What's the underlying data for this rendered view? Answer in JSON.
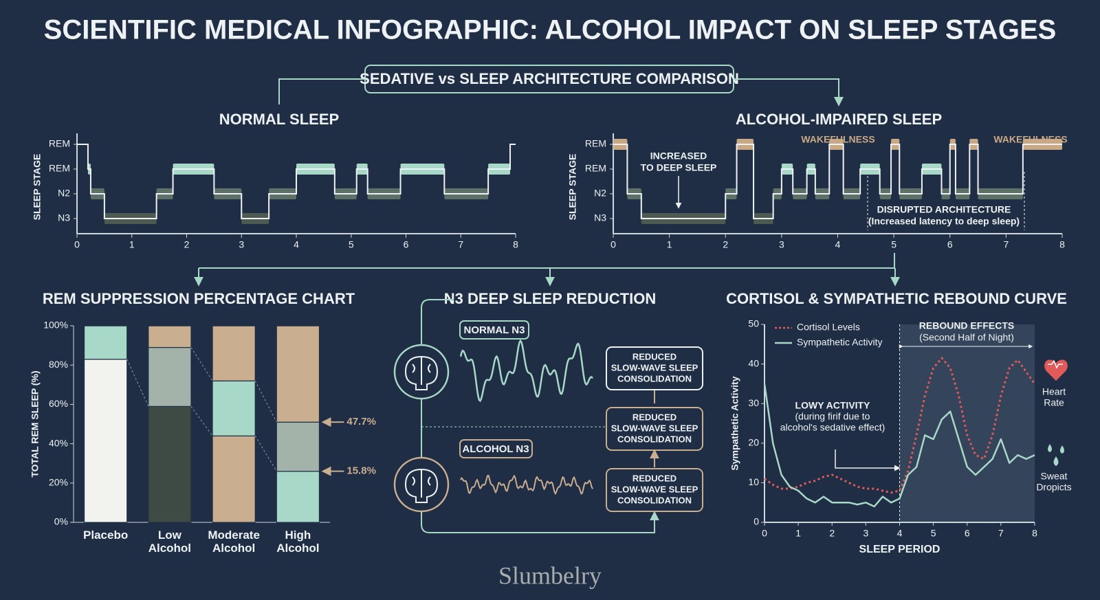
{
  "title": "SCIENTIFIC MEDICAL INFOGRAPHIC: ALCOHOL IMPACT ON SLEEP STAGES",
  "subtitle": "SEDATIVE vs SLEEP ARCHITECTURE COMPARISON",
  "chart_data": [
    {
      "type": "hypnogram",
      "title": "NORMAL SLEEP",
      "y_label": "SLEEP STAGE",
      "x": [
        0,
        0.2,
        0.25,
        0.5,
        1.45,
        1.75,
        2.5,
        3.0,
        3.5,
        4.0,
        4.7,
        5.1,
        5.3,
        5.9,
        6.7,
        7.5,
        7.9
      ],
      "values": [
        3,
        2,
        1,
        0,
        1,
        2,
        1,
        0,
        1,
        2,
        1,
        2,
        1,
        2,
        1,
        2,
        3
      ],
      "stage_colors": [
        "#4c5a51",
        "#5e7168",
        "#a8d8c8"
      ],
      "xlim": [
        0,
        8
      ],
      "xticks": [
        0,
        1,
        2,
        3,
        4,
        5,
        6,
        7,
        8
      ],
      "yticks": [
        {
          "value": 0,
          "label": "N3"
        },
        {
          "value": 1,
          "label": "N2"
        },
        {
          "value": 2,
          "label": "REM"
        },
        {
          "value": 3,
          "label": "REM"
        }
      ]
    },
    {
      "type": "hypnogram",
      "title": "ALCOHOL-IMPAIRED SLEEP",
      "y_label": "SLEEP STAGE",
      "x": [
        0,
        0.25,
        0.5,
        2.0,
        2.2,
        2.5,
        2.85,
        3.0,
        3.2,
        3.45,
        3.6,
        3.85,
        4.1,
        4.4,
        4.75,
        4.95,
        5.1,
        5.5,
        5.85,
        6.0,
        6.1,
        6.35,
        6.5,
        7.3
      ],
      "values": [
        3,
        1,
        0,
        1,
        3,
        0,
        1,
        2,
        1,
        2,
        1,
        3,
        1,
        2,
        1,
        3,
        1,
        2,
        1,
        3,
        1,
        3,
        1,
        3
      ],
      "stage_colors": [
        "#4c5a51",
        "#5e7168",
        "#a8d8c8",
        "#c9a985"
      ],
      "xlim": [
        0,
        8
      ],
      "xticks": [
        0,
        1,
        2,
        3,
        4,
        5,
        6,
        7,
        8
      ],
      "yticks": [
        {
          "value": 0,
          "label": "N3"
        },
        {
          "value": 1,
          "label": "N2"
        },
        {
          "value": 2,
          "label": "REM"
        },
        {
          "value": 3,
          "label": "REM"
        }
      ],
      "annotations": [
        "INCREASED",
        "TO DEEP SLEEP",
        "WAKEFULNESS",
        "WAKEFULNESS",
        "DISRUPTED ARCHITECTURE",
        "(Increased latency to deep sleep)"
      ]
    },
    {
      "type": "stacked_bar",
      "title": "REM SUPPRESSION PERCENTAGE CHART",
      "y_label": "TOTAL REM SLEEP (%)",
      "categories": [
        "Placebo",
        "Low Alcohol",
        "Moderate Alcohol",
        "High Alcohol"
      ],
      "series": [
        {
          "values": [
            83,
            59,
            44,
            26
          ],
          "colors": [
            "#f2f2ef",
            "#3e4a44",
            "#c9ae90",
            "#a8d8c8"
          ]
        },
        {
          "values": [
            17,
            30,
            28,
            25
          ],
          "colors": [
            "#a8d8c8",
            "#a3b3aa",
            "#a8d8c8",
            "#a3b3aa"
          ]
        },
        {
          "values": [
            null,
            11,
            28,
            49
          ],
          "colors": [
            "#c9ae90",
            "#c9ae90",
            "#c9ae90",
            "#c9ae90"
          ]
        }
      ],
      "ylim": [
        0,
        100
      ],
      "yticks": [
        {
          "value": 0,
          "label": "0%"
        },
        {
          "value": 20,
          "label": "20%"
        },
        {
          "value": 40,
          "label": "40%"
        },
        {
          "value": 60,
          "label": "60%"
        },
        {
          "value": 80,
          "label": "80%"
        },
        {
          "value": 100,
          "label": "100%"
        }
      ],
      "annotations": [
        "47.7%",
        "15.8%"
      ]
    },
    {
      "type": "line",
      "title": "CORTISOL & SYMPATHETIC REBOUND CURVE",
      "x_label": "SLEEP PERIOD",
      "y_label": "Sympathetic Activity",
      "x": [
        0,
        0.25,
        0.5,
        0.75,
        1,
        1.25,
        1.5,
        1.75,
        2,
        2.25,
        2.5,
        2.75,
        3,
        3.25,
        3.5,
        3.75,
        4,
        4.25,
        4.5,
        4.75,
        5,
        5.25,
        5.5,
        5.75,
        6,
        6.25,
        6.5,
        6.75,
        7,
        7.25,
        7.5,
        7.75,
        8
      ],
      "series": [
        {
          "name": "Cortisol Levels",
          "color": "#e05a5a",
          "style": "dotted",
          "values": [
            11,
            9.5,
            8.5,
            8.5,
            9,
            10,
            10.5,
            11.5,
            12,
            11,
            10,
            9,
            8.5,
            8.5,
            8,
            7.5,
            8,
            13,
            22,
            32,
            39,
            41.5,
            39,
            32,
            22,
            17,
            16,
            22,
            32,
            39,
            41,
            38,
            35
          ]
        },
        {
          "name": "Sympathetic Activity",
          "color": "#a8d8c8",
          "style": "solid",
          "values": [
            35,
            20,
            12,
            9,
            8,
            6,
            5,
            6.5,
            5,
            5,
            5,
            4.5,
            5,
            4,
            6.5,
            5,
            6,
            12,
            14,
            22,
            21,
            26,
            28,
            21,
            14,
            12,
            14,
            16,
            21,
            15,
            17,
            16,
            17
          ]
        }
      ],
      "xlim": [
        0,
        8
      ],
      "xticks": [
        0,
        1,
        2,
        3,
        4,
        5,
        6,
        7,
        8
      ],
      "ylim": [
        0,
        50
      ],
      "yticks": [
        0,
        10,
        20,
        30,
        40,
        50
      ],
      "highlight_xrange": [
        4,
        8
      ],
      "annotations": [
        "REBOUND EFFECTS",
        "(Second Half of Night)",
        "LOWY ACTIVITY",
        "(during firif due to",
        "alcohol's sedative effect)",
        "Heart",
        "Rate",
        "Sweat",
        "Dropicts"
      ]
    }
  ],
  "n3_panel": {
    "title": "N3 DEEP SLEEP REDUCTION",
    "normal_label": "NORMAL N3",
    "alcohol_label": "ALCOHOL N3",
    "boxes": [
      [
        "REDUCED",
        "SLOW-WAVE SLEEP",
        "CONSOLIDATION"
      ],
      [
        "REDUCED",
        "SLOW-WAVE SLEEP",
        "CONSOLIDATION"
      ],
      [
        "REDUCED",
        "SLOW-WAVE SLEEP",
        "CONSOLIDATION"
      ]
    ]
  },
  "brand": "Slumbelry"
}
